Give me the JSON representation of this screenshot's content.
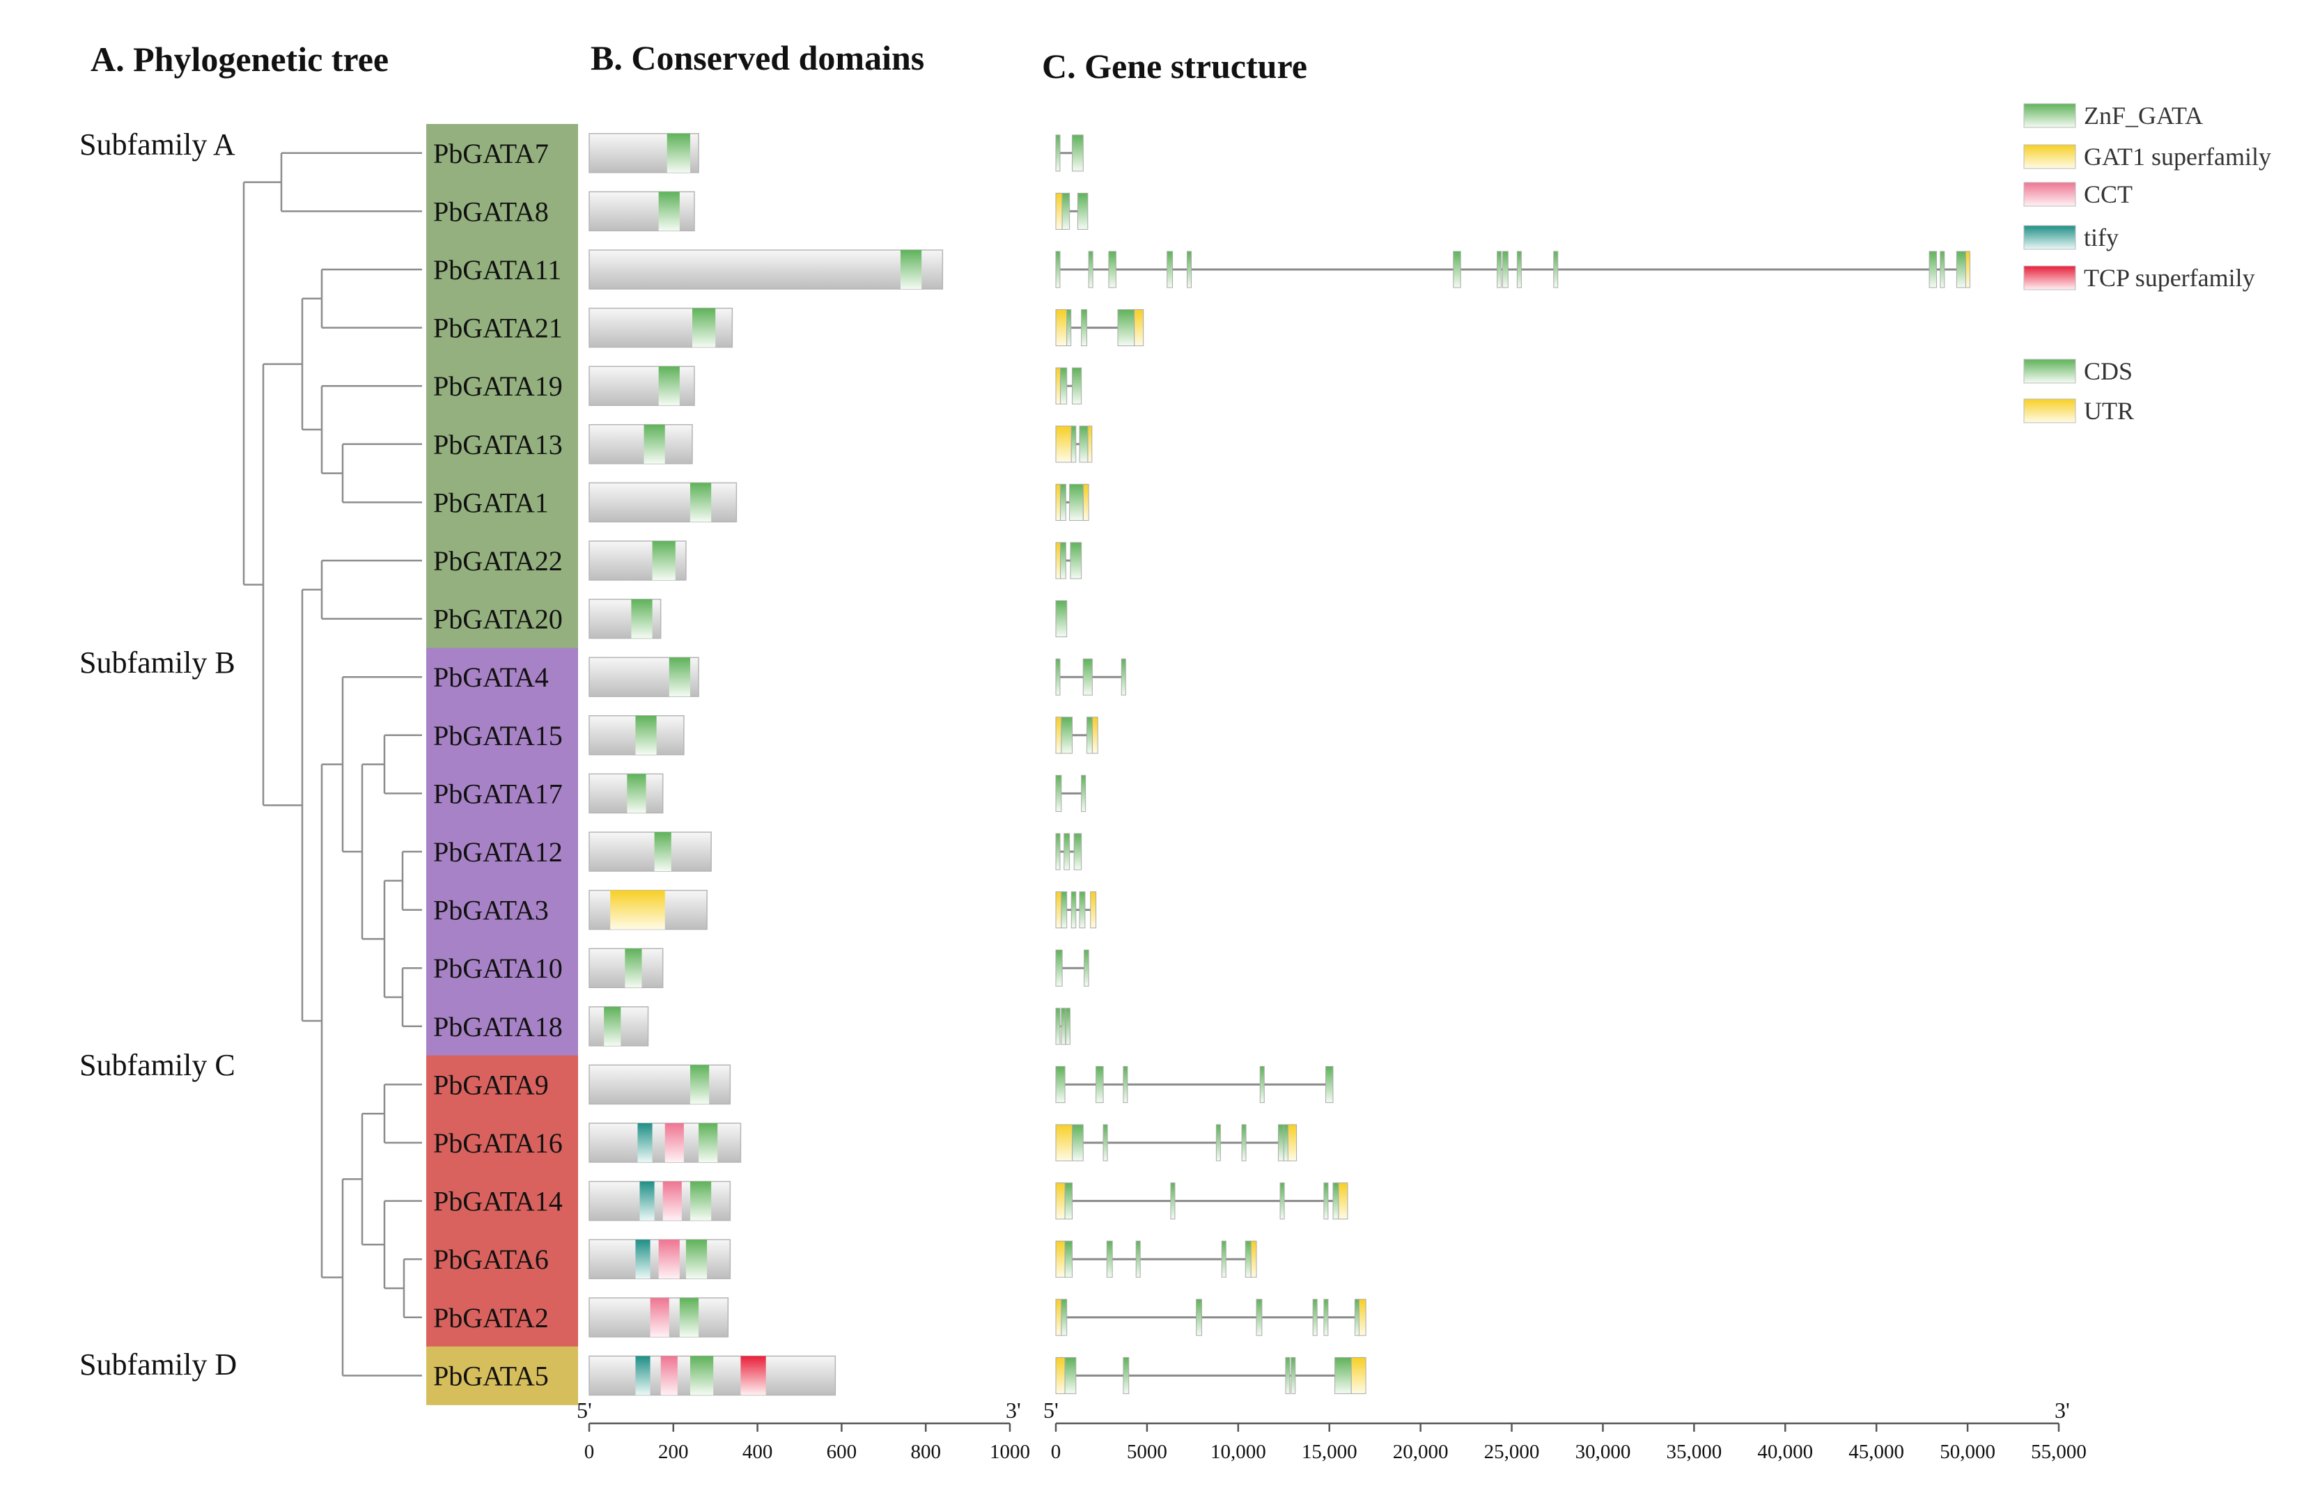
{
  "panels": {
    "a_title": "A.  Phylogenetic tree",
    "b_title": "B.  Conserved domains",
    "c_title": "C.  Gene structure"
  },
  "subfamilies": [
    {
      "label": "Subfamily A",
      "color": "#93B07E"
    },
    {
      "label": "Subfamily B",
      "color": "#A882C6"
    },
    {
      "label": "Subfamily C",
      "color": "#D9625E"
    },
    {
      "label": "Subfamily D",
      "color": "#D6BE5C"
    }
  ],
  "genes": [
    {
      "name": "PbGATA7",
      "subfamily": 0,
      "protein_length": 260,
      "domains": [
        {
          "type": "ZnF_GATA",
          "start": 185,
          "end": 240
        }
      ],
      "gene_length": 1500,
      "cds": [
        [
          0,
          70
        ],
        [
          900,
          1500
        ]
      ],
      "utr": []
    },
    {
      "name": "PbGATA8",
      "subfamily": 0,
      "protein_length": 250,
      "domains": [
        {
          "type": "ZnF_GATA",
          "start": 165,
          "end": 215
        }
      ],
      "gene_length": 1750,
      "cds": [
        [
          350,
          750
        ],
        [
          1200,
          1750
        ]
      ],
      "utr": [
        [
          0,
          350
        ]
      ]
    },
    {
      "name": "PbGATA11",
      "subfamily": 0,
      "protein_length": 840,
      "domains": [
        {
          "type": "ZnF_GATA",
          "start": 740,
          "end": 790
        }
      ],
      "gene_length": 50000,
      "cds": [
        [
          0,
          50
        ],
        [
          1800,
          1900
        ],
        [
          2900,
          3300
        ],
        [
          6100,
          6400
        ],
        [
          7200,
          7400
        ],
        [
          21800,
          22200
        ],
        [
          24200,
          24300
        ],
        [
          24500,
          24800
        ],
        [
          25300,
          25500
        ],
        [
          27300,
          27500
        ],
        [
          47900,
          48300
        ],
        [
          48500,
          48700
        ],
        [
          49400,
          49900
        ]
      ],
      "utr": [
        [
          49900,
          50000
        ]
      ]
    },
    {
      "name": "PbGATA21",
      "subfamily": 0,
      "protein_length": 340,
      "domains": [
        {
          "type": "ZnF_GATA",
          "start": 245,
          "end": 300
        }
      ],
      "gene_length": 4800,
      "cds": [
        [
          600,
          800
        ],
        [
          1400,
          1700
        ],
        [
          3400,
          4300
        ]
      ],
      "utr": [
        [
          0,
          600
        ],
        [
          4300,
          4800
        ]
      ]
    },
    {
      "name": "PbGATA19",
      "subfamily": 0,
      "protein_length": 250,
      "domains": [
        {
          "type": "ZnF_GATA",
          "start": 165,
          "end": 215
        }
      ],
      "gene_length": 1400,
      "cds": [
        [
          250,
          600
        ],
        [
          900,
          1400
        ]
      ],
      "utr": [
        [
          0,
          250
        ]
      ]
    },
    {
      "name": "PbGATA13",
      "subfamily": 0,
      "protein_length": 245,
      "domains": [
        {
          "type": "ZnF_GATA",
          "start": 130,
          "end": 180
        }
      ],
      "gene_length": 1900,
      "cds": [
        [
          850,
          1100
        ],
        [
          1300,
          1750
        ]
      ],
      "utr": [
        [
          0,
          850
        ],
        [
          1750,
          1900
        ]
      ]
    },
    {
      "name": "PbGATA1",
      "subfamily": 0,
      "protein_length": 350,
      "domains": [
        {
          "type": "ZnF_GATA",
          "start": 240,
          "end": 290
        }
      ],
      "gene_length": 1800,
      "cds": [
        [
          250,
          550
        ],
        [
          750,
          1500
        ]
      ],
      "utr": [
        [
          0,
          250
        ],
        [
          1500,
          1800
        ]
      ]
    },
    {
      "name": "PbGATA22",
      "subfamily": 0,
      "protein_length": 230,
      "domains": [
        {
          "type": "ZnF_GATA",
          "start": 150,
          "end": 205
        }
      ],
      "gene_length": 1400,
      "cds": [
        [
          250,
          550
        ],
        [
          800,
          1400
        ]
      ],
      "utr": [
        [
          0,
          250
        ]
      ]
    },
    {
      "name": "PbGATA20",
      "subfamily": 0,
      "protein_length": 170,
      "domains": [
        {
          "type": "ZnF_GATA",
          "start": 100,
          "end": 150
        }
      ],
      "gene_length": 600,
      "cds": [
        [
          0,
          600
        ]
      ],
      "utr": []
    },
    {
      "name": "PbGATA4",
      "subfamily": 1,
      "protein_length": 260,
      "domains": [
        {
          "type": "ZnF_GATA",
          "start": 190,
          "end": 240
        }
      ],
      "gene_length": 3800,
      "cds": [
        [
          0,
          200
        ],
        [
          1500,
          2000
        ],
        [
          3600,
          3800
        ]
      ],
      "utr": []
    },
    {
      "name": "PbGATA15",
      "subfamily": 1,
      "protein_length": 225,
      "domains": [
        {
          "type": "ZnF_GATA",
          "start": 110,
          "end": 160
        }
      ],
      "gene_length": 2300,
      "cds": [
        [
          300,
          900
        ],
        [
          1700,
          2000
        ]
      ],
      "utr": [
        [
          0,
          300
        ],
        [
          2000,
          2300
        ]
      ]
    },
    {
      "name": "PbGATA17",
      "subfamily": 1,
      "protein_length": 175,
      "domains": [
        {
          "type": "ZnF_GATA",
          "start": 90,
          "end": 135
        }
      ],
      "gene_length": 1600,
      "cds": [
        [
          0,
          300
        ],
        [
          1400,
          1600
        ]
      ],
      "utr": []
    },
    {
      "name": "PbGATA12",
      "subfamily": 1,
      "protein_length": 290,
      "domains": [
        {
          "type": "ZnF_GATA",
          "start": 155,
          "end": 195
        }
      ],
      "gene_length": 1400,
      "cds": [
        [
          0,
          200
        ],
        [
          450,
          750
        ],
        [
          1000,
          1400
        ]
      ],
      "utr": []
    },
    {
      "name": "PbGATA3",
      "subfamily": 1,
      "protein_length": 280,
      "domains": [
        {
          "type": "GAT1 superfamily",
          "start": 50,
          "end": 180
        }
      ],
      "gene_length": 2200,
      "cds": [
        [
          300,
          600
        ],
        [
          850,
          1100
        ],
        [
          1300,
          1600
        ]
      ],
      "utr": [
        [
          0,
          300
        ],
        [
          1900,
          2200
        ]
      ]
    },
    {
      "name": "PbGATA10",
      "subfamily": 1,
      "protein_length": 175,
      "domains": [
        {
          "type": "ZnF_GATA",
          "start": 85,
          "end": 125
        }
      ],
      "gene_length": 1800,
      "cds": [
        [
          0,
          350
        ],
        [
          1550,
          1800
        ]
      ],
      "utr": []
    },
    {
      "name": "PbGATA18",
      "subfamily": 1,
      "protein_length": 140,
      "domains": [
        {
          "type": "ZnF_GATA",
          "start": 35,
          "end": 75
        }
      ],
      "gene_length": 700,
      "cds": [
        [
          0,
          150
        ],
        [
          300,
          450
        ],
        [
          550,
          700
        ]
      ],
      "utr": []
    },
    {
      "name": "PbGATA9",
      "subfamily": 2,
      "protein_length": 335,
      "domains": [
        {
          "type": "ZnF_GATA",
          "start": 240,
          "end": 285
        }
      ],
      "gene_length": 15200,
      "cds": [
        [
          0,
          500
        ],
        [
          2200,
          2600
        ],
        [
          3700,
          3900
        ],
        [
          11200,
          11400
        ],
        [
          14800,
          15200
        ]
      ],
      "utr": []
    },
    {
      "name": "PbGATA16",
      "subfamily": 2,
      "protein_length": 360,
      "domains": [
        {
          "type": "tify",
          "start": 115,
          "end": 150
        },
        {
          "type": "CCT",
          "start": 180,
          "end": 225
        },
        {
          "type": "ZnF_GATA",
          "start": 260,
          "end": 305
        }
      ],
      "gene_length": 13200,
      "cds": [
        [
          900,
          1500
        ],
        [
          2600,
          2800
        ],
        [
          8800,
          9000
        ],
        [
          10200,
          10400
        ],
        [
          12200,
          12500
        ],
        [
          12500,
          12700
        ]
      ],
      "utr": [
        [
          0,
          900
        ],
        [
          12700,
          13200
        ]
      ]
    },
    {
      "name": "PbGATA14",
      "subfamily": 2,
      "protein_length": 335,
      "domains": [
        {
          "type": "tify",
          "start": 120,
          "end": 155
        },
        {
          "type": "CCT",
          "start": 175,
          "end": 220
        },
        {
          "type": "ZnF_GATA",
          "start": 240,
          "end": 290
        }
      ],
      "gene_length": 16000,
      "cds": [
        [
          500,
          900
        ],
        [
          6300,
          6500
        ],
        [
          12300,
          12500
        ],
        [
          14700,
          14900
        ],
        [
          15200,
          15500
        ]
      ],
      "utr": [
        [
          0,
          500
        ],
        [
          15500,
          16000
        ]
      ]
    },
    {
      "name": "PbGATA6",
      "subfamily": 2,
      "protein_length": 335,
      "domains": [
        {
          "type": "tify",
          "start": 110,
          "end": 145
        },
        {
          "type": "CCT",
          "start": 165,
          "end": 215
        },
        {
          "type": "ZnF_GATA",
          "start": 230,
          "end": 280
        }
      ],
      "gene_length": 11000,
      "cds": [
        [
          500,
          900
        ],
        [
          2800,
          3100
        ],
        [
          4400,
          4600
        ],
        [
          9100,
          9300
        ],
        [
          10400,
          10700
        ]
      ],
      "utr": [
        [
          0,
          500
        ],
        [
          10700,
          11000
        ]
      ]
    },
    {
      "name": "PbGATA2",
      "subfamily": 2,
      "protein_length": 330,
      "domains": [
        {
          "type": "CCT",
          "start": 145,
          "end": 190
        },
        {
          "type": "ZnF_GATA",
          "start": 215,
          "end": 260
        }
      ],
      "gene_length": 17000,
      "cds": [
        [
          300,
          600
        ],
        [
          7700,
          8000
        ],
        [
          11000,
          11300
        ],
        [
          14100,
          14300
        ],
        [
          14700,
          14900
        ],
        [
          16400,
          16600
        ]
      ],
      "utr": [
        [
          0,
          300
        ],
        [
          16600,
          17000
        ]
      ]
    },
    {
      "name": "PbGATA5",
      "subfamily": 3,
      "protein_length": 585,
      "domains": [
        {
          "type": "tify",
          "start": 110,
          "end": 145
        },
        {
          "type": "CCT",
          "start": 170,
          "end": 210
        },
        {
          "type": "ZnF_GATA",
          "start": 240,
          "end": 295
        },
        {
          "type": "TCP superfamily",
          "start": 360,
          "end": 420
        }
      ],
      "gene_length": 17000,
      "cds": [
        [
          500,
          1100
        ],
        [
          3700,
          4000
        ],
        [
          12600,
          12800
        ],
        [
          12900,
          13100
        ],
        [
          15300,
          16200
        ]
      ],
      "utr": [
        [
          0,
          500
        ],
        [
          16200,
          17000
        ]
      ]
    }
  ],
  "domain_colors": {
    "ZnF_GATA": "#6FC06A",
    "GAT1 superfamily": "#F7D23A",
    "CCT": "#F0809A",
    "tify": "#2E9C92",
    "TCP superfamily": "#EA2F45"
  },
  "legend": {
    "domains": [
      {
        "label": "ZnF_GATA",
        "key": "ZnF_GATA"
      },
      {
        "label": "GAT1 superfamily",
        "key": "GAT1 superfamily"
      },
      {
        "label": "CCT",
        "key": "CCT"
      },
      {
        "label": "tify",
        "key": "tify"
      },
      {
        "label": "TCP superfamily",
        "key": "TCP superfamily"
      }
    ],
    "structure": [
      {
        "label": "CDS",
        "color": "#6FC06A"
      },
      {
        "label": "UTR",
        "color": "#F7D23A"
      }
    ]
  },
  "axes": {
    "domain_axis": {
      "five_prime": "5'",
      "three_prime": "3'",
      "max": 1000,
      "ticks": [
        "0",
        "200",
        "400",
        "600",
        "800",
        "1000"
      ],
      "tick_values": [
        0,
        200,
        400,
        600,
        800,
        1000
      ]
    },
    "gene_axis": {
      "five_prime": "5'",
      "three_prime": "3'",
      "max": 55000,
      "ticks": [
        "0",
        "5000",
        "10,000",
        "15,000",
        "20,000",
        "25,000",
        "30,000",
        "35,000",
        "40,000",
        "45,000",
        "50,000",
        "55,000"
      ],
      "tick_values": [
        0,
        5000,
        10000,
        15000,
        20000,
        25000,
        30000,
        35000,
        40000,
        45000,
        50000,
        55000
      ]
    }
  }
}
